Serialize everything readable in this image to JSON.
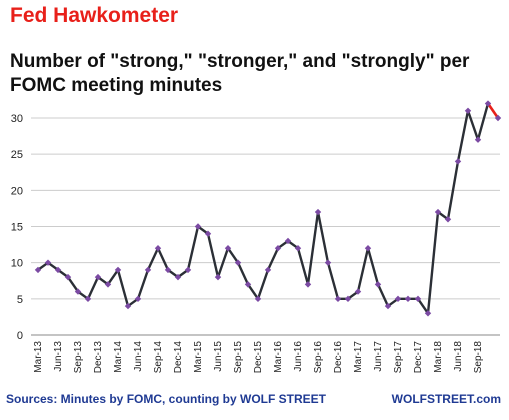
{
  "header": {
    "title": "Fed Hawkometer",
    "subtitle": "Number of \"strong,\" \"stronger,\" and \"strongly\" per FOMC meeting minutes"
  },
  "footer": {
    "source": "Sources: Minutes by FOMC, counting by WOLF STREET",
    "brand": "WOLFSTREET.com"
  },
  "colors": {
    "title": "#e8201a",
    "line_old": "#2b2f36",
    "line_recent": "#e8201a",
    "marker": "#7b4aa3",
    "grid": "#cccccc",
    "footer_text": "#1f3a93"
  },
  "chart_data": {
    "type": "line",
    "title": "Number of \"strong,\" \"stronger,\" and \"strongly\" per FOMC meeting minutes",
    "xlabel": "",
    "ylabel": "",
    "ylim": [
      0,
      30
    ],
    "yticks": [
      0,
      5,
      10,
      15,
      20,
      25,
      30
    ],
    "grid": true,
    "x_tick_labels": [
      "Mar-13",
      "Jun-13",
      "Sep-13",
      "Dec-13",
      "Mar-14",
      "Jun-14",
      "Sep-14",
      "Dec-14",
      "Mar-15",
      "Jun-15",
      "Sep-15",
      "Dec-15",
      "Mar-16",
      "Jun-16",
      "Sep-16",
      "Dec-16",
      "Mar-17",
      "Jun-17",
      "Sep-17",
      "Dec-17",
      "Mar-18",
      "Jun-18",
      "Sep-18"
    ],
    "series": [
      {
        "highlight_from_index": 45,
        "values": [
          9,
          10,
          9,
          8,
          6,
          5,
          8,
          7,
          9,
          4,
          5,
          9,
          12,
          9,
          8,
          9,
          15,
          14,
          8,
          12,
          10,
          7,
          5,
          9,
          12,
          13,
          12,
          7,
          17,
          10,
          5,
          5,
          6,
          12,
          7,
          4,
          5,
          5,
          5,
          3,
          17,
          16,
          24,
          31,
          27,
          32,
          30
        ]
      }
    ]
  }
}
